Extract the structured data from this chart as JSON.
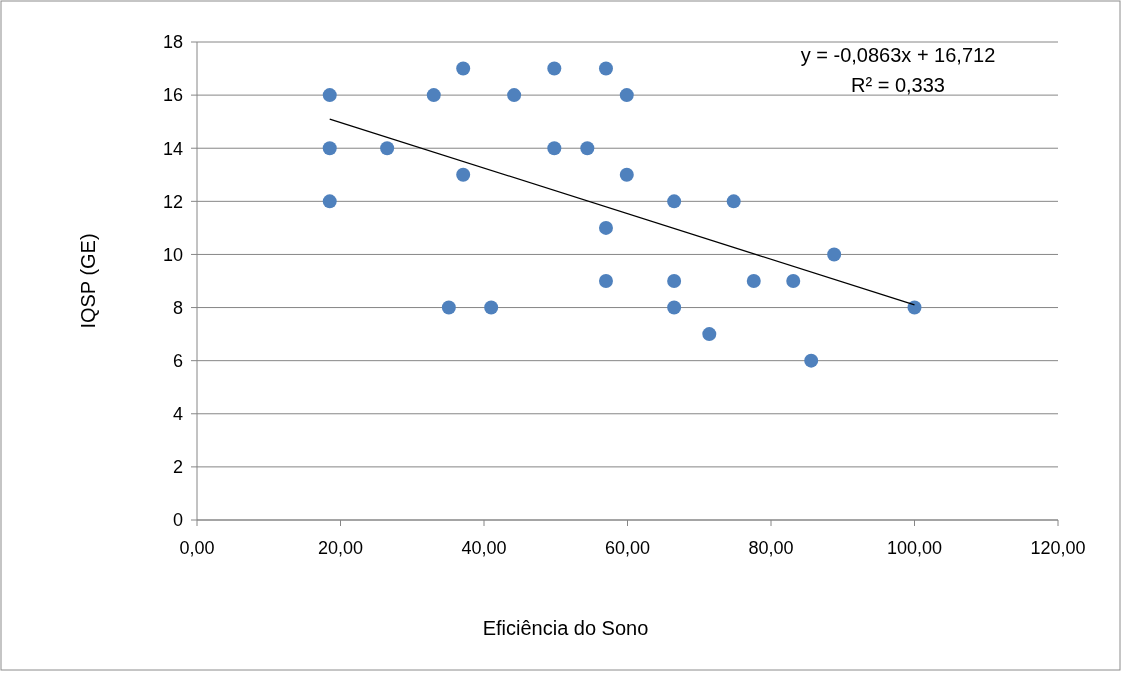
{
  "chart_data": {
    "type": "scatter",
    "xlabel": "Eficiência do Sono",
    "ylabel": "IQSP (GE)",
    "xlim": [
      0,
      120
    ],
    "xticks": [
      {
        "value": 0,
        "label": "0,00"
      },
      {
        "value": 20,
        "label": "20,00"
      },
      {
        "value": 40,
        "label": "40,00"
      },
      {
        "value": 60,
        "label": "60,00"
      },
      {
        "value": 80,
        "label": "80,00"
      },
      {
        "value": 100,
        "label": "100,00"
      },
      {
        "value": 120,
        "label": "120,00"
      }
    ],
    "ylim": [
      0,
      18
    ],
    "yticks": [
      0,
      2,
      4,
      6,
      8,
      10,
      12,
      14,
      16,
      18
    ],
    "grid": "y",
    "annotations": [
      "y = -0,0863x + 16,712",
      "R² = 0,333"
    ],
    "series": [
      {
        "color": "#4f81bd",
        "marker": "circle",
        "x": [
          18.5,
          18.5,
          18.5,
          26.5,
          33.0,
          37.1,
          37.1,
          35.1,
          41.0,
          44.2,
          49.8,
          49.8,
          54.4,
          57.0,
          57.0,
          57.0,
          59.9,
          59.9,
          66.5,
          66.5,
          66.5,
          71.4,
          74.8,
          77.6,
          83.1,
          85.6,
          88.8,
          100
        ],
        "values": [
          16,
          14,
          12,
          14,
          16,
          17,
          13,
          8,
          8,
          16,
          17,
          14,
          14,
          17,
          11,
          9,
          16,
          13,
          12,
          9,
          8,
          7,
          12,
          9,
          9,
          6,
          10,
          8
        ]
      },
      {
        "type": "line",
        "color": "#000000",
        "marker": "none",
        "x": [
          18.5,
          100
        ],
        "values": [
          15.1,
          8.1
        ]
      }
    ]
  }
}
